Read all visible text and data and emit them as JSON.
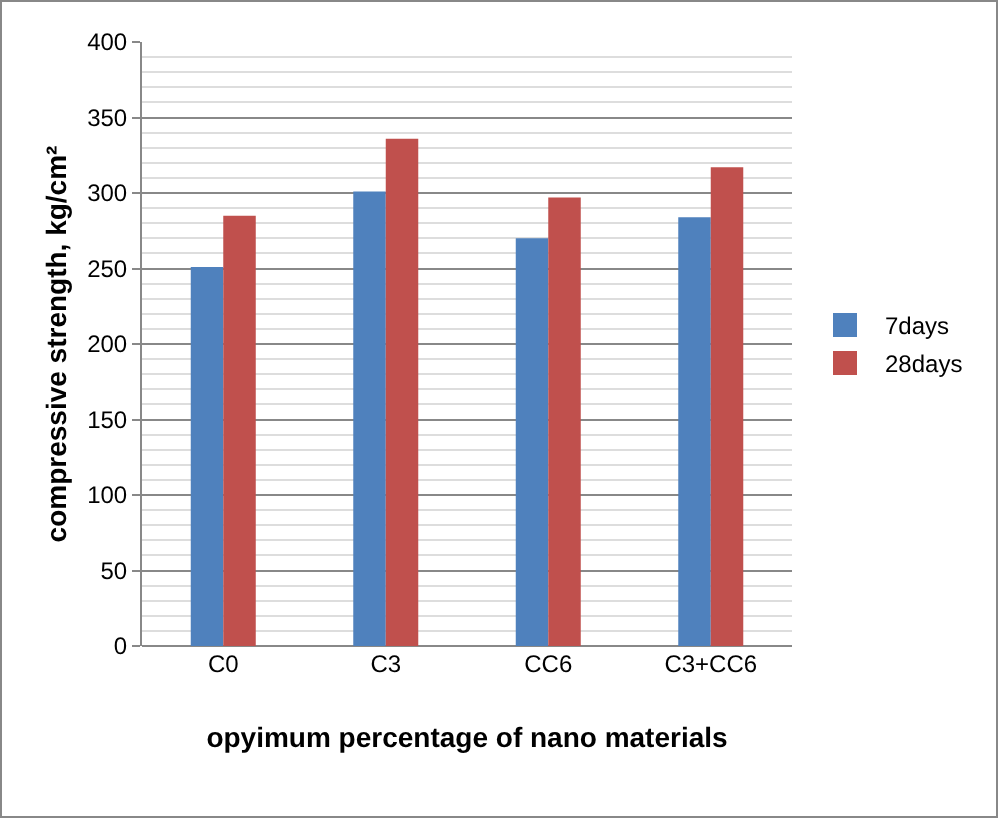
{
  "chart_data": {
    "type": "bar",
    "xlabel": "opyimum percentage of nano materials",
    "ylabel": "compressive strength, kg/cm²",
    "categories": [
      "C0",
      "C3",
      "CC6",
      "C3+CC6"
    ],
    "series": [
      {
        "name": "7days",
        "color": "#4f81bd",
        "values": [
          251,
          301,
          270,
          284
        ]
      },
      {
        "name": "28days",
        "color": "#c0504d",
        "values": [
          285,
          336,
          297,
          317
        ]
      }
    ],
    "ylim": [
      0,
      400
    ],
    "yticks": [
      0,
      50,
      100,
      150,
      200,
      250,
      300,
      350,
      400
    ],
    "grid": "y",
    "legend": "right"
  }
}
